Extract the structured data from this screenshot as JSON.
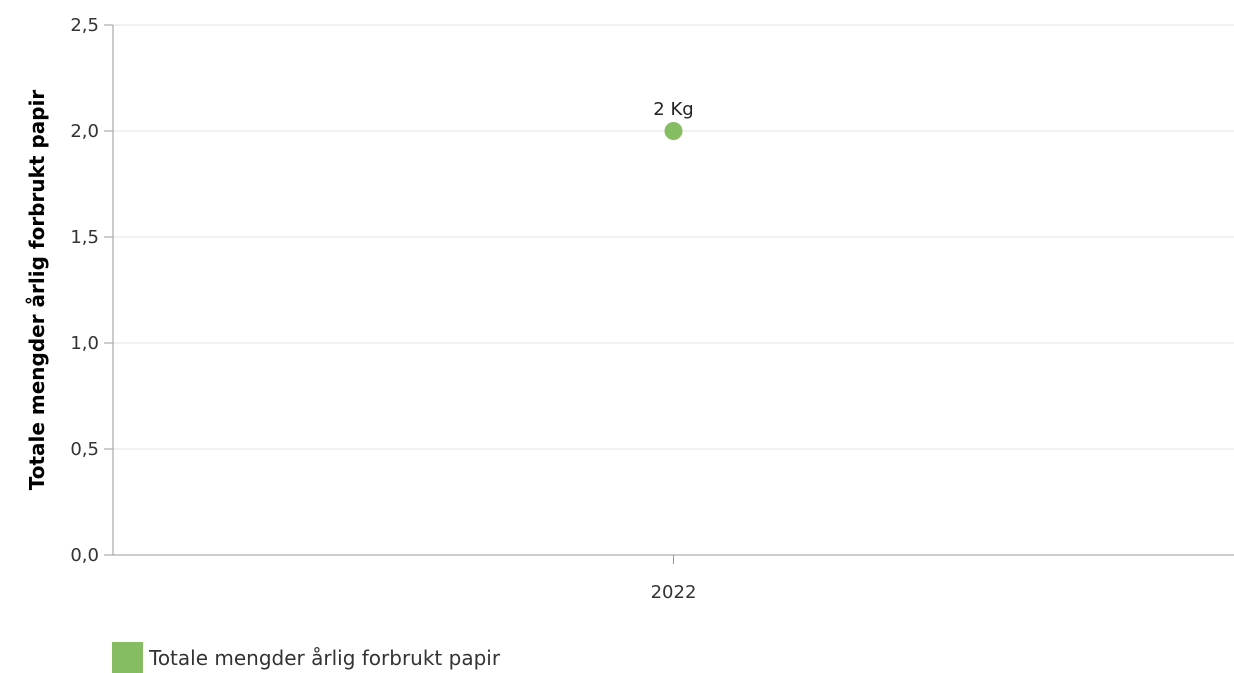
{
  "chart_data": {
    "type": "scatter",
    "categories": [
      "2022"
    ],
    "series": [
      {
        "name": "Totale mengder årlig forbrukt papir",
        "values": [
          2
        ],
        "data_labels": [
          "2 Kg"
        ],
        "color": "#86bc62"
      }
    ],
    "ylabel": "Totale mengder årlig forbrukt papir",
    "xlabel": "",
    "ylim": [
      0,
      2.5
    ],
    "yticks": [
      "0,0",
      "0,5",
      "1,0",
      "1,5",
      "2,0",
      "2,5"
    ],
    "grid": true,
    "legend_position": "bottom-left"
  }
}
